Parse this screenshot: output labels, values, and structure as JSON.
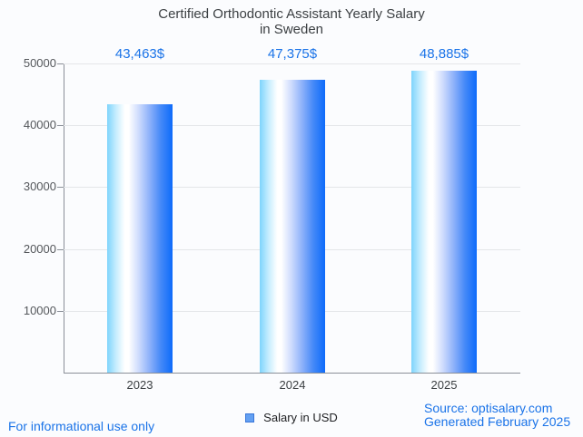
{
  "page": {
    "background": "#fbfcfe"
  },
  "title": {
    "line1": "Certified Orthodontic Assistant Yearly Salary",
    "line2": "in Sweden",
    "color": "#3c4043"
  },
  "legend": {
    "label": "Salary in USD",
    "swatch_fill": "#63a0f2",
    "swatch_border": "#3a77d9"
  },
  "footer": {
    "disclaimer": "For informational use only",
    "source_line1": "Source: optisalary.com",
    "source_line2": "Generated February 2025",
    "link_color": "#1a73e8"
  },
  "chart_data": {
    "type": "bar",
    "title": "Certified Orthodontic Assistant Yearly Salary in Sweden",
    "categories": [
      "2023",
      "2024",
      "2025"
    ],
    "series": [
      {
        "name": "Salary in USD",
        "values": [
          43463,
          47375,
          48885
        ]
      }
    ],
    "value_labels": [
      "43,463$",
      "47,375$",
      "48,885$"
    ],
    "xlabel": "",
    "ylabel": "",
    "ylim": [
      0,
      50000
    ],
    "yticks": [
      10000,
      20000,
      30000,
      40000,
      50000
    ],
    "grid": true,
    "legend_position": "bottom",
    "value_label_color": "#1a73e8",
    "grid_color": "#e4e6e9",
    "axis_color": "#8a8f98",
    "tick_label_color": "#54575b",
    "x_label_color": "#3c4043",
    "bar_gradient": [
      {
        "color": "#7ed4fc",
        "pos": 0
      },
      {
        "color": "#c3ecfe",
        "pos": 13
      },
      {
        "color": "#ffffff",
        "pos": 27
      },
      {
        "color": "#ffffff",
        "pos": 33
      },
      {
        "color": "#cfdcfd",
        "pos": 48
      },
      {
        "color": "#8db1fa",
        "pos": 65
      },
      {
        "color": "#4589f8",
        "pos": 82
      },
      {
        "color": "#0d6bfa",
        "pos": 100
      }
    ]
  }
}
